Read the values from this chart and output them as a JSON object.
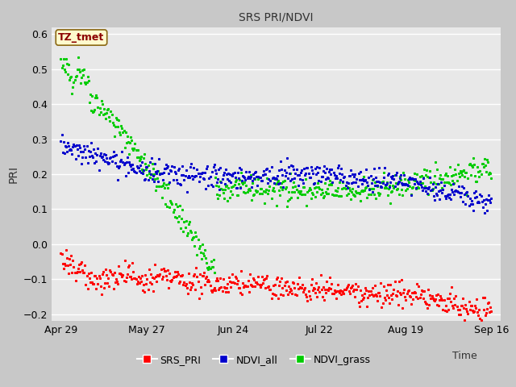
{
  "title": "SRS PRI/NDVI",
  "xlabel": "Time",
  "ylabel": "PRI",
  "ylim": [
    -0.22,
    0.62
  ],
  "yticks": [
    -0.2,
    -0.1,
    0.0,
    0.1,
    0.2,
    0.3,
    0.4,
    0.5,
    0.6
  ],
  "xtick_labels": [
    "Apr 29",
    "May 27",
    "Jun 24",
    "Jul 22",
    "Aug 19",
    "Sep 16"
  ],
  "annotation": "TZ_tmet",
  "annotation_color": "#8B0000",
  "annotation_bg": "#FFFACD",
  "annotation_border": "#8B6914",
  "series_colors": {
    "SRS_PRI": "#FF0000",
    "NDVI_all": "#0000CC",
    "NDVI_grass": "#00CC00"
  },
  "fig_facecolor": "#C8C8C8",
  "ax_facecolor": "#E8E8E8",
  "grid_color": "#FFFFFF",
  "n_points": 500
}
